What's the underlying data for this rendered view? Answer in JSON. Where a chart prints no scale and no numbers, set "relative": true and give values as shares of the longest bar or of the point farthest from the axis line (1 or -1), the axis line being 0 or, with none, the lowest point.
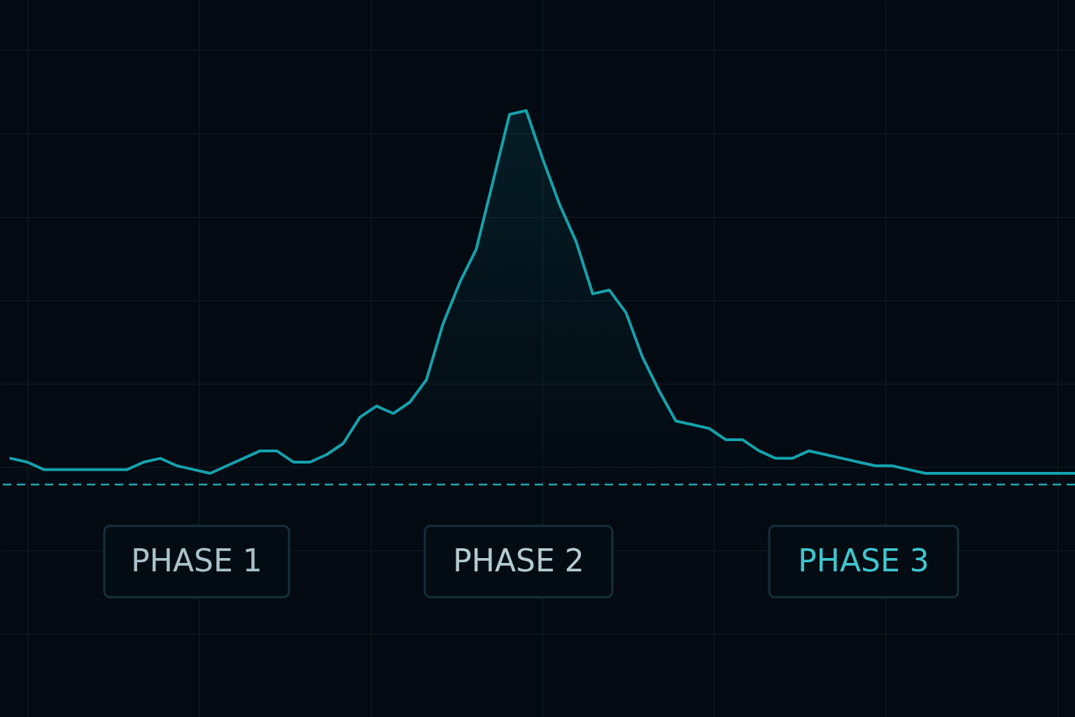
{
  "chart_data": {
    "type": "area",
    "relative": true,
    "grid": true,
    "categories": [
      null,
      null,
      null,
      null,
      null,
      null,
      null,
      null,
      null,
      null,
      null,
      null,
      null,
      null,
      null,
      null,
      null,
      null,
      null,
      null,
      null,
      null,
      null,
      null,
      null,
      null,
      null,
      null,
      null,
      null,
      null,
      null,
      null,
      null,
      null,
      null,
      null,
      null,
      null,
      null,
      null,
      null,
      null,
      null,
      null,
      null,
      null,
      null,
      null,
      null,
      null,
      null,
      null,
      null,
      null,
      null,
      null,
      null,
      null,
      null,
      null,
      null,
      null,
      null,
      null
    ],
    "series": [
      {
        "color": "#14a3ad",
        "values": [
          0.07,
          0.06,
          0.04,
          0.04,
          0.04,
          0.04,
          0.04,
          0.04,
          0.06,
          0.07,
          0.05,
          0.04,
          0.03,
          0.05,
          0.07,
          0.09,
          0.09,
          0.06,
          0.06,
          0.08,
          0.11,
          0.18,
          0.21,
          0.19,
          0.22,
          0.28,
          0.43,
          0.54,
          0.63,
          0.81,
          0.99,
          1,
          0.87,
          0.75,
          0.65,
          0.51,
          0.52,
          0.46,
          0.34,
          0.25,
          0.17,
          0.16,
          0.15,
          0.12,
          0.12,
          0.09,
          0.07,
          0.07,
          0.09,
          0.08,
          0.07,
          0.06,
          0.05,
          0.05,
          0.04,
          0.03,
          0.03,
          0.03,
          0.03,
          0.03,
          0.03,
          0.03,
          0.03,
          0.03,
          0.03
        ]
      }
    ],
    "ref_lines": [
      {
        "axis": "y",
        "value": 0,
        "color": "#1fa9b3",
        "line_style": "dashed"
      }
    ],
    "annotations": [
      "PHASE 1",
      "PHASE 2",
      "PHASE 3"
    ]
  }
}
